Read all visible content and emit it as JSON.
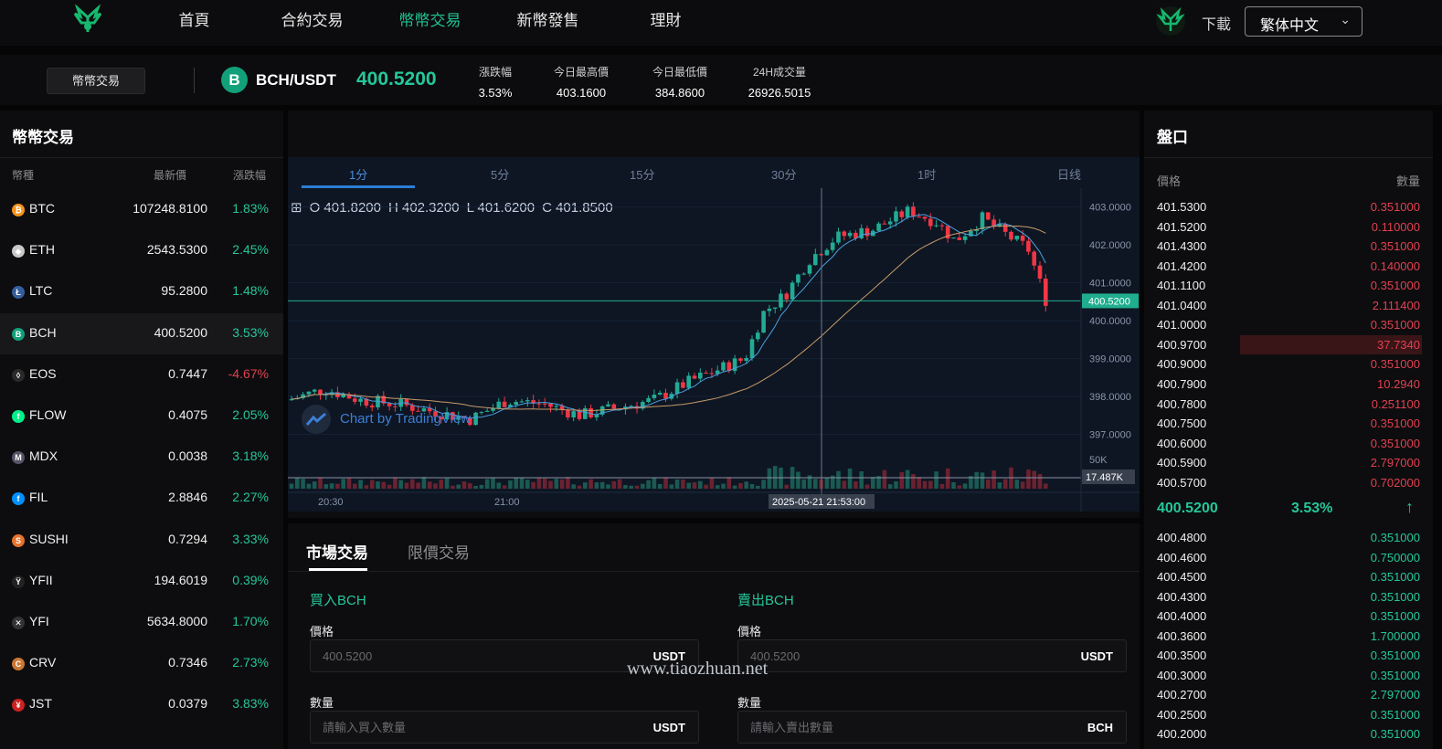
{
  "nav": {
    "links": [
      "首頁",
      "合約交易",
      "幣幣交易",
      "新幣發售",
      "理財"
    ],
    "active_index": 2,
    "download": "下載",
    "language": "繁体中文"
  },
  "ticker": {
    "market_tag": "幣幣交易",
    "pair": "BCH/USDT",
    "coin_letter": "B",
    "last_price": "400.5200",
    "stats": [
      {
        "label": "漲跌幅",
        "value": "3.53%",
        "color": "#25c79a"
      },
      {
        "label": "今日最高價",
        "value": "403.1600"
      },
      {
        "label": "今日最低價",
        "value": "384.8600"
      },
      {
        "label": "24H成交量",
        "value": "26926.5015"
      }
    ]
  },
  "left_panel": {
    "title": "幣幣交易",
    "headers": {
      "coin": "幣種",
      "price": "最新價",
      "change": "漲跌幅"
    },
    "coins": [
      {
        "name": "BTC",
        "price": "107248.8100",
        "change": "1.83%",
        "dir": "up",
        "icon_color": "#f7931a",
        "icon": "₿"
      },
      {
        "name": "ETH",
        "price": "2543.5300",
        "change": "2.45%",
        "dir": "up",
        "icon_color": "#c8c8c8",
        "icon": "◆"
      },
      {
        "name": "LTC",
        "price": "95.2800",
        "change": "1.48%",
        "dir": "up",
        "icon_color": "#345d9d",
        "icon": "Ł"
      },
      {
        "name": "BCH",
        "price": "400.5200",
        "change": "3.53%",
        "dir": "up",
        "icon_color": "#12a07a",
        "icon": "B",
        "selected": true
      },
      {
        "name": "EOS",
        "price": "0.7447",
        "change": "-4.67%",
        "dir": "down",
        "icon_color": "#2a2a2a",
        "icon": "◊"
      },
      {
        "name": "FLOW",
        "price": "0.4075",
        "change": "2.05%",
        "dir": "up",
        "icon_color": "#00ef8b",
        "icon": "f"
      },
      {
        "name": "MDX",
        "price": "0.0038",
        "change": "3.18%",
        "dir": "up",
        "icon_color": "#556",
        "icon": "M"
      },
      {
        "name": "FIL",
        "price": "2.8846",
        "change": "2.27%",
        "dir": "up",
        "icon_color": "#0090ff",
        "icon": "f"
      },
      {
        "name": "SUSHI",
        "price": "0.7294",
        "change": "3.33%",
        "dir": "up",
        "icon_color": "#e6722d",
        "icon": "S"
      },
      {
        "name": "YFII",
        "price": "194.6019",
        "change": "0.39%",
        "dir": "up",
        "icon_color": "#222",
        "icon": "Ÿ"
      },
      {
        "name": "YFI",
        "price": "5634.8000",
        "change": "1.70%",
        "dir": "up",
        "icon_color": "#333",
        "icon": "✕"
      },
      {
        "name": "CRV",
        "price": "0.7346",
        "change": "2.73%",
        "dir": "up",
        "icon_color": "#c73",
        "icon": "C"
      },
      {
        "name": "JST",
        "price": "0.0379",
        "change": "3.83%",
        "dir": "up",
        "icon_color": "#c22",
        "icon": "¥"
      }
    ]
  },
  "chart": {
    "intervals": [
      "1分",
      "5分",
      "15分",
      "30分",
      "1时",
      "日线"
    ],
    "active_interval": 0,
    "ohlc": {
      "o": "O 401.8200",
      "h": "H 402.3200",
      "l": "L 401.6200",
      "c": "C 401.8500"
    },
    "y_ticks": [
      "403.0000",
      "402.0000",
      "401.0000",
      "400.0000",
      "399.0000",
      "398.0000",
      "397.0000"
    ],
    "y_values": [
      403,
      402,
      401,
      400,
      399,
      398,
      397
    ],
    "price_tag": "400.5200",
    "vol_tick": "50K",
    "vol_tag": "17.487K",
    "x_ticks": [
      "20:30",
      "21:00"
    ],
    "crosshair_time": "2025-05-21 21:53:00",
    "watermark": "Chart by TradingView",
    "up_color": "#22ab94",
    "down_color": "#f23645"
  },
  "trade": {
    "tabs": [
      "市場交易",
      "限價交易"
    ],
    "buy": {
      "title": "買入BCH",
      "price_label": "價格",
      "price_value": "400.5200",
      "price_unit": "USDT",
      "qty_label": "數量",
      "qty_placeholder": "請輸入買入數量",
      "qty_unit": "USDT"
    },
    "sell": {
      "title": "賣出BCH",
      "price_label": "價格",
      "price_value": "400.5200",
      "price_unit": "USDT",
      "qty_label": "數量",
      "qty_placeholder": "請輸入賣出數量",
      "qty_unit": "BCH"
    }
  },
  "watermark": "www.tiaozhuan.net",
  "book": {
    "title": "盤口",
    "header_price": "價格",
    "header_qty": "數量",
    "asks": [
      {
        "price": "401.5300",
        "qty": "0.351000"
      },
      {
        "price": "401.5200",
        "qty": "0.110000"
      },
      {
        "price": "401.4300",
        "qty": "0.351000"
      },
      {
        "price": "401.4200",
        "qty": "0.140000"
      },
      {
        "price": "401.1100",
        "qty": "0.351000"
      },
      {
        "price": "401.0400",
        "qty": "2.111400"
      },
      {
        "price": "401.0000",
        "qty": "0.351000"
      },
      {
        "price": "400.9700",
        "qty": "37.7340",
        "depth": 0.95
      },
      {
        "price": "400.9000",
        "qty": "0.351000"
      },
      {
        "price": "400.7900",
        "qty": "10.2940"
      },
      {
        "price": "400.7800",
        "qty": "0.251100"
      },
      {
        "price": "400.7500",
        "qty": "0.351000"
      },
      {
        "price": "400.6000",
        "qty": "0.351000"
      },
      {
        "price": "400.5900",
        "qty": "2.797000"
      },
      {
        "price": "400.5700",
        "qty": "0.702000"
      }
    ],
    "mid_price": "400.5200",
    "mid_change": "3.53%",
    "mid_arrow": "↑",
    "bids": [
      {
        "price": "400.4800",
        "qty": "0.351000"
      },
      {
        "price": "400.4600",
        "qty": "0.750000"
      },
      {
        "price": "400.4500",
        "qty": "0.351000"
      },
      {
        "price": "400.4300",
        "qty": "0.351000"
      },
      {
        "price": "400.4000",
        "qty": "0.351000"
      },
      {
        "price": "400.3600",
        "qty": "1.700000"
      },
      {
        "price": "400.3500",
        "qty": "0.351000"
      },
      {
        "price": "400.3000",
        "qty": "0.351000"
      },
      {
        "price": "400.2700",
        "qty": "2.797000"
      },
      {
        "price": "400.2500",
        "qty": "0.351000"
      },
      {
        "price": "400.2000",
        "qty": "0.351000"
      }
    ]
  }
}
